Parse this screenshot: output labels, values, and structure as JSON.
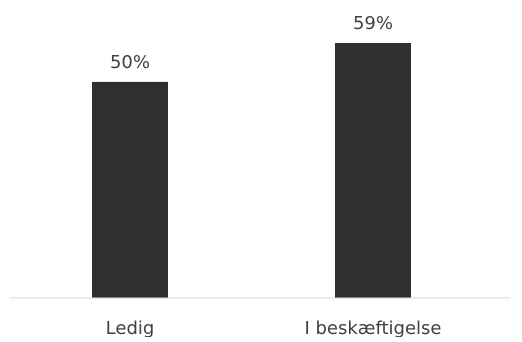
{
  "chart_data": {
    "type": "bar",
    "title": "",
    "xlabel": "",
    "ylabel": "",
    "categories": [
      "Ledig",
      "I beskæftigelse"
    ],
    "values": [
      50,
      59
    ],
    "data_labels": [
      "50%",
      "59%"
    ],
    "ylim": [
      0,
      60
    ],
    "grid": false,
    "legend": "none",
    "bar_color": "#2f2f2f",
    "axis_color": "#d9d9d9"
  }
}
